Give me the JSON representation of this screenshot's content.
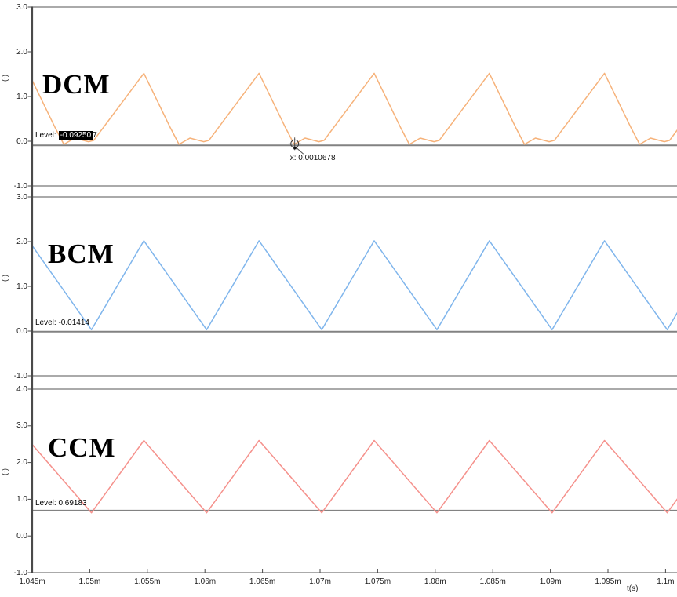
{
  "window": {
    "background": "#ffffff"
  },
  "time_axis": {
    "label": "t(s)",
    "xlim_ms": [
      1.045,
      1.1012
    ],
    "ticks": [
      {
        "t_ms": 1.045,
        "label": "1.045m"
      },
      {
        "t_ms": 1.05,
        "label": "1.05m"
      },
      {
        "t_ms": 1.055,
        "label": "1.055m"
      },
      {
        "t_ms": 1.06,
        "label": "1.06m"
      },
      {
        "t_ms": 1.065,
        "label": "1.065m"
      },
      {
        "t_ms": 1.07,
        "label": "1.07m"
      },
      {
        "t_ms": 1.075,
        "label": "1.075m"
      },
      {
        "t_ms": 1.08,
        "label": "1.08m"
      },
      {
        "t_ms": 1.085,
        "label": "1.085m"
      },
      {
        "t_ms": 1.09,
        "label": "1.09m"
      },
      {
        "t_ms": 1.095,
        "label": "1.095m"
      },
      {
        "t_ms": 1.1,
        "label": "1.1m"
      }
    ]
  },
  "chart_data": [
    {
      "type": "line",
      "title": "DCM",
      "ylabel": "(-)",
      "color": "#f6b27a",
      "ylim": [
        -1.0,
        3.0
      ],
      "yticks": [
        {
          "v": 3.0,
          "label": "3.0"
        },
        {
          "v": 2.0,
          "label": "2.0"
        },
        {
          "v": 1.0,
          "label": "1.0"
        },
        {
          "v": 0.0,
          "label": "0.0"
        },
        {
          "v": -1.0,
          "label": "-1.0"
        }
      ],
      "level": {
        "label": "Level:",
        "value": -0.092507,
        "plain_text": "",
        "selected_text": "-0.09250",
        "trailing_text": "7"
      },
      "waveform": {
        "period_us": 10,
        "anchor_peak_ms": 1.0547,
        "cycle_points_us_value": [
          [
            0,
            1.52
          ],
          [
            2.3,
            0.3
          ],
          [
            3.05,
            -0.07
          ],
          [
            4.0,
            0.07
          ],
          [
            5.2,
            -0.01
          ],
          [
            5.65,
            0.02
          ],
          [
            10,
            1.52
          ]
        ]
      },
      "cursor": {
        "label": "x: 0.0010678",
        "t_ms": 1.0678
      }
    },
    {
      "type": "line",
      "title": "BCM",
      "ylabel": "(-)",
      "color": "#7fb5ec",
      "ylim": [
        -1.0,
        3.0
      ],
      "yticks": [
        {
          "v": 3.0,
          "label": "3.0"
        },
        {
          "v": 2.0,
          "label": "2.0"
        },
        {
          "v": 1.0,
          "label": "1.0"
        },
        {
          "v": 0.0,
          "label": "0.0"
        },
        {
          "v": -1.0,
          "label": "-1.0"
        }
      ],
      "level": {
        "label": "Level:",
        "value": -0.01414,
        "plain_text": " -0.01414",
        "selected_text": "",
        "trailing_text": ""
      },
      "waveform": {
        "period_us": 10,
        "anchor_peak_ms": 1.0547,
        "cycle_points_us_value": [
          [
            0,
            2.02
          ],
          [
            5.45,
            0.03
          ],
          [
            10,
            2.02
          ]
        ]
      }
    },
    {
      "type": "line",
      "title": "CCM",
      "ylabel": "(-)",
      "color": "#f5918c",
      "ylim": [
        -1.0,
        4.0
      ],
      "yticks": [
        {
          "v": 4.0,
          "label": "4.0"
        },
        {
          "v": 3.0,
          "label": "3.0"
        },
        {
          "v": 2.0,
          "label": "2.0"
        },
        {
          "v": 1.0,
          "label": "1.0"
        },
        {
          "v": 0.0,
          "label": "0.0"
        },
        {
          "v": -1.0,
          "label": "-1.0"
        }
      ],
      "level": {
        "label": "Level:",
        "value": 0.69183,
        "plain_text": " 0.69183",
        "selected_text": "",
        "trailing_text": ""
      },
      "waveform": {
        "period_us": 10,
        "anchor_peak_ms": 1.0547,
        "cycle_points_us_value": [
          [
            0,
            2.6
          ],
          [
            5.45,
            0.63
          ],
          [
            10,
            2.6
          ]
        ]
      }
    }
  ]
}
